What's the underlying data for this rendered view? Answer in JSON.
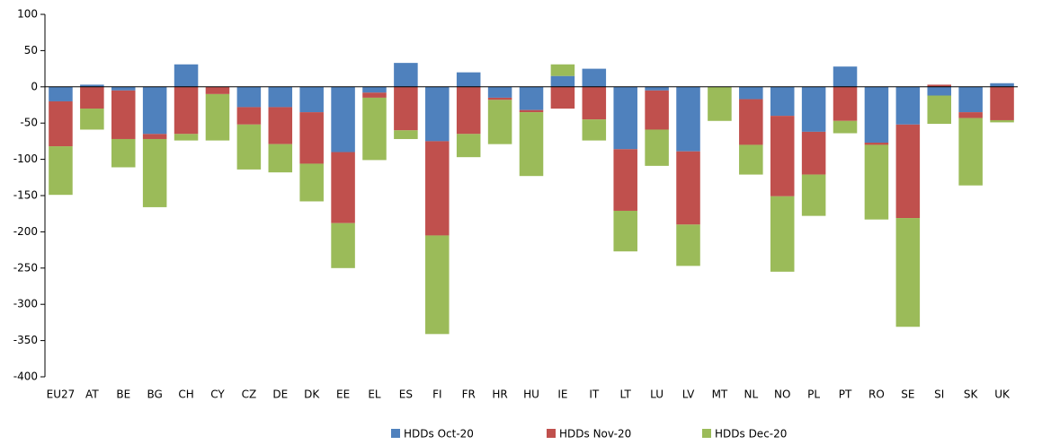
{
  "chart_data": {
    "type": "bar",
    "stacked": true,
    "categories": [
      "EU27",
      "AT",
      "BE",
      "BG",
      "CH",
      "CY",
      "CZ",
      "DE",
      "DK",
      "EE",
      "EL",
      "ES",
      "FI",
      "FR",
      "HR",
      "HU",
      "IE",
      "IT",
      "LT",
      "LU",
      "LV",
      "MT",
      "NL",
      "NO",
      "PL",
      "PT",
      "RO",
      "SE",
      "SI",
      "SK",
      "UK"
    ],
    "series": [
      {
        "name": "HDDs Oct-20",
        "color": "#4f81bd",
        "values": [
          -20,
          3,
          -5,
          -65,
          31,
          0,
          -28,
          -28,
          -35,
          -90,
          -8,
          33,
          -75,
          20,
          -15,
          -32,
          15,
          25,
          -86,
          -5,
          -89,
          0,
          -17,
          -40,
          -62,
          28,
          -77,
          -52,
          -12,
          -35,
          5
        ]
      },
      {
        "name": "HDDs Nov-20",
        "color": "#c0504d",
        "values": [
          -62,
          -30,
          -67,
          -7,
          -65,
          -10,
          -24,
          -51,
          -71,
          -98,
          -7,
          -60,
          -130,
          -65,
          -3,
          -3,
          -30,
          -45,
          -85,
          -54,
          -101,
          0,
          -63,
          -111,
          -59,
          -47,
          -3,
          -129,
          3,
          -8,
          -46
        ]
      },
      {
        "name": "HDDs Dec-20",
        "color": "#9bbb59",
        "values": [
          -67,
          -29,
          -39,
          -94,
          -9,
          -64,
          -62,
          -39,
          -52,
          -62,
          -86,
          -12,
          -136,
          -32,
          -61,
          -88,
          16,
          -29,
          -56,
          -50,
          -57,
          -47,
          -41,
          -104,
          -57,
          -17,
          -103,
          -150,
          -39,
          -93,
          -3
        ]
      }
    ],
    "ylim": [
      -400,
      100
    ],
    "yticks": [
      100,
      50,
      0,
      -50,
      -100,
      -150,
      -200,
      -250,
      -300,
      -350,
      -400
    ],
    "grid": false,
    "legend": "bottom"
  }
}
